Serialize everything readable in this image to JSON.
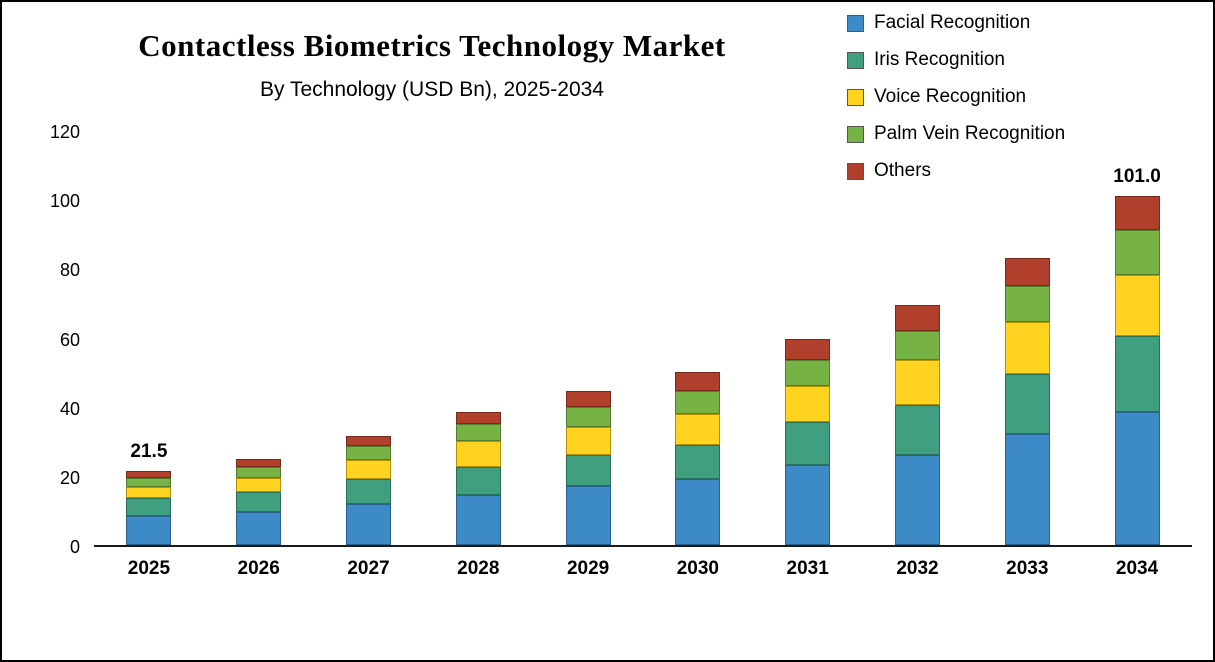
{
  "chart_data": {
    "type": "bar",
    "stacked": true,
    "title": "Contactless Biometrics Technology Market",
    "subtitle": "By Technology (USD Bn), 2025-2034",
    "categories": [
      "2025",
      "2026",
      "2027",
      "2028",
      "2029",
      "2030",
      "2031",
      "2032",
      "2033",
      "2034"
    ],
    "series": [
      {
        "name": "Facial Recognition",
        "color": "#3D8BC6",
        "border": "#29608C",
        "values": [
          8.5,
          9.5,
          12.0,
          14.5,
          17.0,
          19.0,
          23.0,
          26.0,
          32.0,
          38.5
        ]
      },
      {
        "name": "Iris Recognition",
        "color": "#3F9F7E",
        "border": "#2A6F57",
        "values": [
          5.2,
          5.7,
          7.0,
          8.0,
          9.0,
          10.0,
          12.5,
          14.5,
          17.5,
          22.0
        ]
      },
      {
        "name": "Voice Recognition",
        "color": "#FFD320",
        "border": "#B29200",
        "values": [
          3.2,
          4.3,
          5.5,
          7.5,
          8.0,
          9.0,
          10.5,
          13.0,
          15.0,
          17.5
        ]
      },
      {
        "name": "Palm Vein Recognition",
        "color": "#77B344",
        "border": "#527D2E",
        "values": [
          2.6,
          3.0,
          4.0,
          5.0,
          6.0,
          6.5,
          7.5,
          8.5,
          10.5,
          13.0
        ]
      },
      {
        "name": "Others",
        "color": "#B0402C",
        "border": "#752A1C",
        "values": [
          2.0,
          2.5,
          3.0,
          3.5,
          4.5,
          5.5,
          6.0,
          7.5,
          8.0,
          10.0
        ]
      }
    ],
    "totals": [
      21.5,
      25.0,
      31.5,
      38.5,
      44.5,
      50.0,
      59.5,
      69.5,
      83.0,
      101.0
    ],
    "bar_total_labels": [
      "21.5",
      "",
      "",
      "",
      "",
      "",
      "",
      "",
      "",
      "101.0"
    ],
    "xlabel": "",
    "ylabel": "",
    "ylim": [
      0,
      120
    ],
    "yticks": [
      0,
      20,
      40,
      60,
      80,
      100,
      120
    ],
    "grid": false,
    "legend_position": "top-right"
  }
}
